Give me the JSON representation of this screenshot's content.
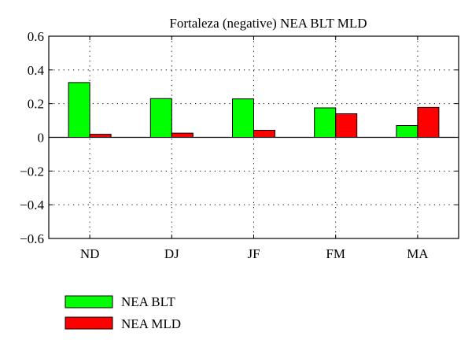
{
  "chart_data": {
    "type": "bar",
    "title": "Fortaleza (negative) NEA BLT MLD",
    "xlabel": "",
    "ylabel": "",
    "categories": [
      "ND",
      "DJ",
      "JF",
      "FM",
      "MA"
    ],
    "series": [
      {
        "name": "NEA BLT",
        "color": "#00ff00",
        "values": [
          0.325,
          0.23,
          0.228,
          0.175,
          0.07
        ]
      },
      {
        "name": "NEA MLD",
        "color": "#ff0000",
        "values": [
          0.018,
          0.025,
          0.042,
          0.14,
          0.178
        ]
      }
    ],
    "ylim": [
      -0.6,
      0.6
    ],
    "yticks": [
      0.6,
      0.4,
      0.2,
      0,
      -0.2,
      -0.4,
      -0.6
    ],
    "ytick_labels": [
      "0.6",
      "0.4",
      "0.2",
      "0",
      "−0.2",
      "−0.4",
      "−0.6"
    ],
    "grid": true,
    "legend_position": "bottom-left"
  }
}
